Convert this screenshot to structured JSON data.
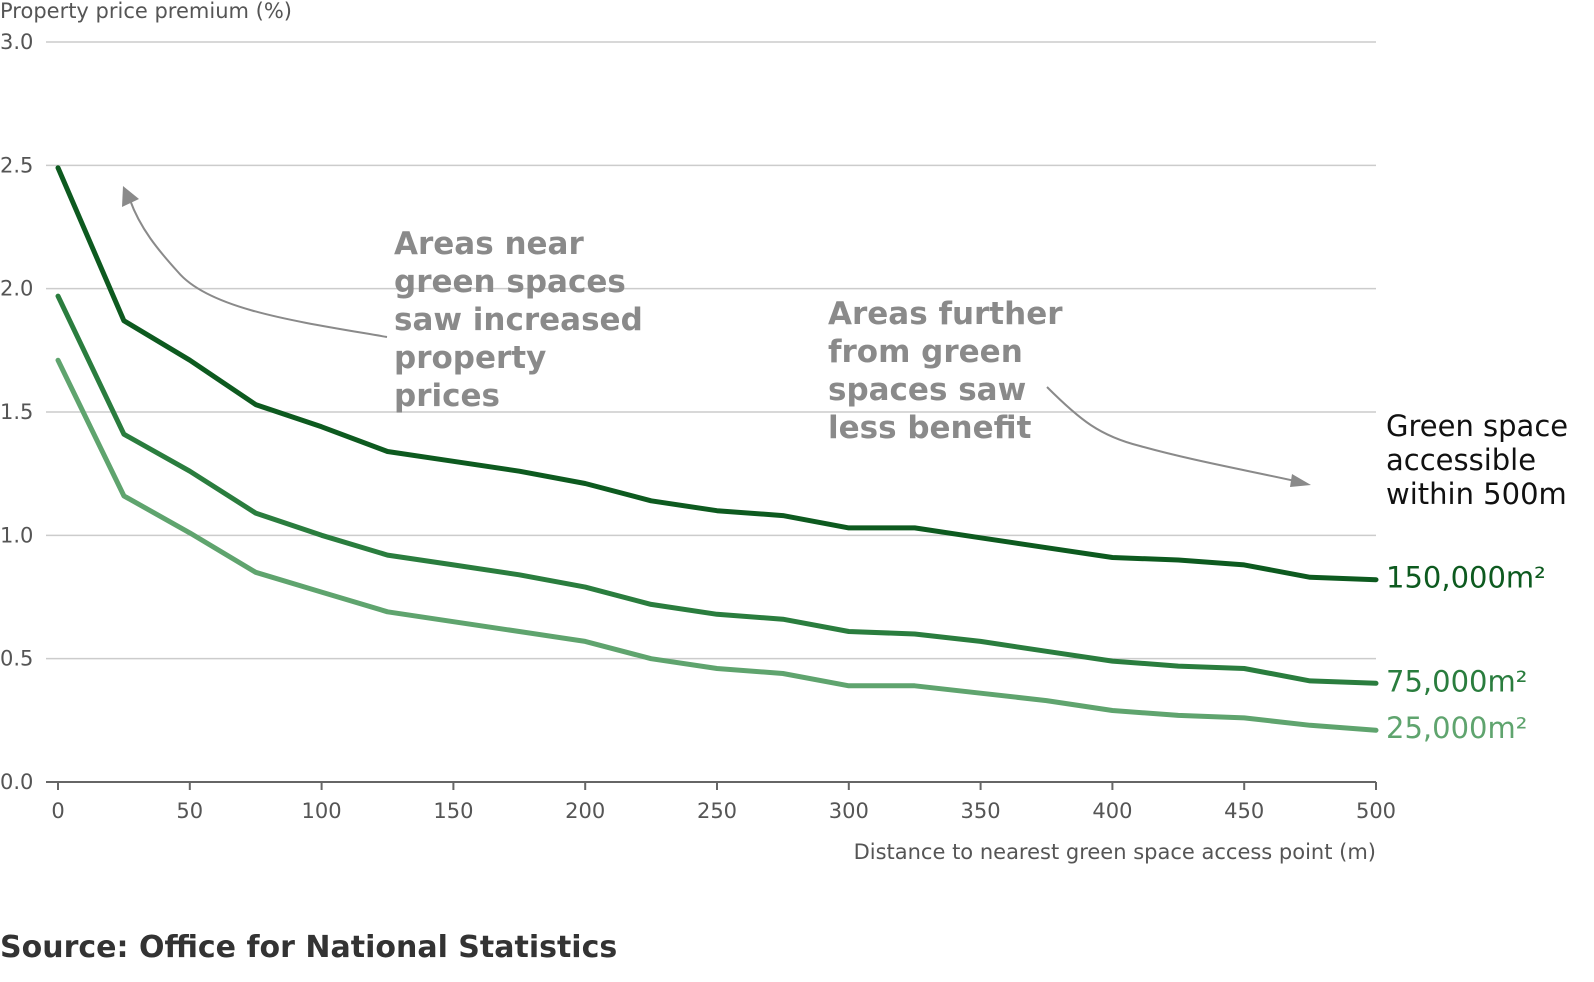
{
  "chart_data": {
    "type": "line",
    "ylabel": "Property price premium (%)",
    "xlabel": "Distance to nearest green space access point (m)",
    "xlim": [
      0,
      500
    ],
    "ylim": [
      0,
      3
    ],
    "x_ticks": [
      "0",
      "50",
      "100",
      "150",
      "200",
      "250",
      "300",
      "350",
      "400",
      "450",
      "500"
    ],
    "y_ticks": [
      "0.0",
      "0.5",
      "1.0",
      "1.5",
      "2.0",
      "2.5",
      "3.0"
    ],
    "grid": true,
    "x": [
      0,
      25,
      50,
      75,
      100,
      125,
      150,
      175,
      200,
      225,
      250,
      275,
      300,
      325,
      350,
      375,
      400,
      425,
      450,
      475,
      500
    ],
    "legend_title": [
      "Green space",
      "accessible",
      "within 500m"
    ],
    "series": [
      {
        "name": "150,000m²",
        "color": "#0d5a1f",
        "values": [
          2.49,
          1.87,
          1.71,
          1.53,
          1.44,
          1.34,
          1.3,
          1.26,
          1.21,
          1.14,
          1.1,
          1.08,
          1.03,
          1.03,
          0.99,
          0.95,
          0.91,
          0.9,
          0.88,
          0.83,
          0.82
        ]
      },
      {
        "name": "75,000m²",
        "color": "#2a7d3e",
        "values": [
          1.97,
          1.41,
          1.26,
          1.09,
          1.0,
          0.92,
          0.88,
          0.84,
          0.79,
          0.72,
          0.68,
          0.66,
          0.61,
          0.6,
          0.57,
          0.53,
          0.49,
          0.47,
          0.46,
          0.41,
          0.4
        ]
      },
      {
        "name": "25,000m²",
        "color": "#5fa46e",
        "values": [
          1.71,
          1.16,
          1.01,
          0.85,
          0.77,
          0.69,
          0.65,
          0.61,
          0.57,
          0.5,
          0.46,
          0.44,
          0.39,
          0.39,
          0.36,
          0.33,
          0.29,
          0.27,
          0.26,
          0.23,
          0.21
        ]
      }
    ],
    "annotations": [
      {
        "lines": [
          "Areas near",
          "green spaces",
          "saw increased",
          "property",
          "prices"
        ]
      },
      {
        "lines": [
          "Areas further",
          "from green",
          "spaces saw",
          "less benefit"
        ]
      }
    ],
    "annotation_color": "#8a8a8a",
    "grid_color": "#cccccc",
    "source": "Source: Office for National Statistics"
  }
}
